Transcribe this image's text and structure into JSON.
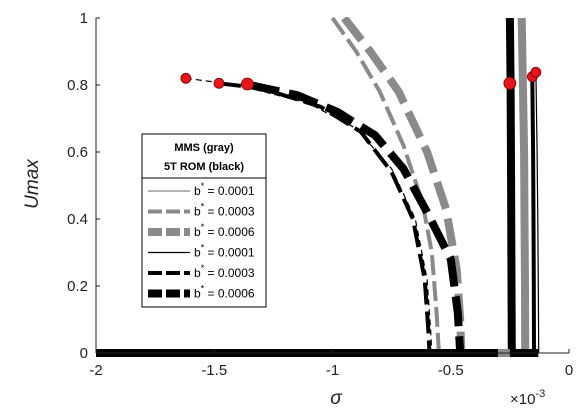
{
  "chart_data": {
    "type": "line",
    "xlabel": "σ",
    "ylabel": "Umax",
    "x_exponent_label": "×10",
    "x_exponent_power": "-3",
    "xlim": [
      -2,
      0
    ],
    "ylim": [
      0,
      1
    ],
    "xticks": [
      -2,
      -1.5,
      -1,
      -0.5,
      0
    ],
    "xtick_labels": [
      "-2",
      "-1.5",
      "-1",
      "-0.5",
      "0"
    ],
    "yticks": [
      0,
      0.2,
      0.4,
      0.6,
      0.8,
      1
    ],
    "ytick_labels": [
      "0",
      "0.2",
      "0.4",
      "0.6",
      "0.8",
      "1"
    ],
    "grid": false,
    "legend_placement": "center-left",
    "legend": {
      "title_line1": "MMS (gray)",
      "title_line2": "5T ROM (black)",
      "entries": [
        {
          "prefix": "b",
          "sup": "*",
          "text": " = 0.0001",
          "color": "#9a9a9a",
          "style": "solid",
          "width": 1.5
        },
        {
          "prefix": "b",
          "sup": "*",
          "text": " = 0.0003",
          "color": "#8a8a8a",
          "style": "dashed",
          "width": 4
        },
        {
          "prefix": "b",
          "sup": "*",
          "text": " = 0.0006",
          "color": "#8a8a8a",
          "style": "dashed",
          "width": 8
        },
        {
          "prefix": "b",
          "sup": "*",
          "text": " = 0.0001",
          "color": "#000000",
          "style": "solid",
          "width": 1.2
        },
        {
          "prefix": "b",
          "sup": "*",
          "text": " = 0.0003",
          "color": "#000000",
          "style": "dashed",
          "width": 4
        },
        {
          "prefix": "b",
          "sup": "*",
          "text": " = 0.0006",
          "color": "#000000",
          "style": "dashed",
          "width": 8
        }
      ]
    },
    "series": [
      {
        "group": "MMS",
        "b": 0.0001,
        "color": "#9a9a9a",
        "width": 1.5,
        "dash": "",
        "x": [
          -0.25,
          -0.245,
          -0.242,
          -0.24,
          -0.238,
          -0.236,
          -0.235
        ],
        "y": [
          1.0,
          0.8,
          0.6,
          0.4,
          0.2,
          0.05,
          0
        ]
      },
      {
        "group": "MMS",
        "b": 0.0003,
        "color": "#8a8a8a",
        "width": 4,
        "dash": "20 6",
        "x": [
          -1.0,
          -0.9,
          -0.8,
          -0.7,
          -0.62,
          -0.58,
          -0.56,
          -0.55
        ],
        "y": [
          1.0,
          0.9,
          0.78,
          0.62,
          0.45,
          0.3,
          0.12,
          0
        ]
      },
      {
        "group": "MMS",
        "b": 0.0006,
        "color": "#8a8a8a",
        "width": 8,
        "dash": "28 10",
        "x": [
          -0.95,
          -0.84,
          -0.72,
          -0.6,
          -0.52,
          -0.475,
          -0.46,
          -0.455
        ],
        "y": [
          1.0,
          0.9,
          0.78,
          0.6,
          0.43,
          0.25,
          0.1,
          0
        ]
      },
      {
        "group": "MMS",
        "b": 0.0006,
        "color": "#8a8a8a",
        "width": 8,
        "dash": "",
        "x": [
          -0.2,
          -0.195,
          -0.19,
          -0.188,
          -0.186,
          -0.185
        ],
        "y": [
          1.0,
          0.8,
          0.6,
          0.4,
          0.2,
          0
        ]
      },
      {
        "group": "ROM",
        "b": 0.0001,
        "color": "#000000",
        "width": 1.2,
        "dash": "6 4",
        "x": [
          -1.62,
          -1.4,
          -1.1,
          -0.9,
          -0.75,
          -0.65,
          -0.6,
          -0.585,
          -0.58
        ],
        "y": [
          0.82,
          0.8,
          0.745,
          0.67,
          0.55,
          0.4,
          0.22,
          0.07,
          0
        ]
      },
      {
        "group": "ROM",
        "b": 0.0003,
        "color": "#000000",
        "width": 4,
        "dash": "22 7",
        "x": [
          -1.48,
          -1.3,
          -1.05,
          -0.88,
          -0.75,
          -0.66,
          -0.61,
          -0.595,
          -0.59
        ],
        "y": [
          0.805,
          0.79,
          0.735,
          0.66,
          0.54,
          0.4,
          0.22,
          0.07,
          0
        ]
      },
      {
        "group": "ROM",
        "b": 0.0006,
        "color": "#000000",
        "width": 8,
        "dash": "30 10",
        "x": [
          -1.35,
          -1.15,
          -0.98,
          -0.82,
          -0.7,
          -0.6,
          -0.5,
          -0.47,
          -0.46
        ],
        "y": [
          0.8,
          0.77,
          0.72,
          0.65,
          0.55,
          0.42,
          0.28,
          0.12,
          0
        ]
      },
      {
        "group": "ROM",
        "b": 0.0001,
        "color": "#000000",
        "width": 1.2,
        "dash": "",
        "x": [
          -0.14,
          -0.135,
          -0.132,
          -0.13,
          -0.128
        ],
        "y": [
          0.84,
          0.6,
          0.4,
          0.2,
          0
        ]
      },
      {
        "group": "ROM",
        "b": 0.0003,
        "color": "#000000",
        "width": 4,
        "dash": "",
        "x": [
          -0.155,
          -0.152,
          -0.15,
          -0.149,
          -0.148
        ],
        "y": [
          0.82,
          0.6,
          0.4,
          0.2,
          0
        ]
      },
      {
        "group": "ROM",
        "b": 0.0006,
        "color": "#000000",
        "width": 8,
        "dash": "",
        "x": [
          -0.25,
          -0.247,
          -0.245,
          -0.243,
          -0.242
        ],
        "y": [
          1.0,
          0.8,
          0.5,
          0.2,
          0
        ]
      },
      {
        "group": "ROM",
        "b": 0.0006,
        "color": "#000000",
        "width": 8,
        "dash": "",
        "x": [
          -2.0,
          -0.3
        ],
        "y": [
          0,
          0
        ]
      },
      {
        "group": "MMS",
        "b": 0.0006,
        "color": "#8a8a8a",
        "width": 8,
        "dash": "",
        "x": [
          -0.3,
          -0.25
        ],
        "y": [
          0,
          0
        ]
      },
      {
        "group": "ROM",
        "b": 0.0006,
        "color": "#000000",
        "width": 8,
        "dash": "",
        "x": [
          -0.25,
          -0.13
        ],
        "y": [
          0,
          0
        ]
      }
    ],
    "markers": [
      {
        "x": -1.62,
        "y": 0.82,
        "r": 5
      },
      {
        "x": -1.48,
        "y": 0.805,
        "r": 5
      },
      {
        "x": -1.36,
        "y": 0.803,
        "r": 6
      },
      {
        "x": -0.25,
        "y": 0.805,
        "r": 6
      },
      {
        "x": -0.155,
        "y": 0.825,
        "r": 5
      },
      {
        "x": -0.14,
        "y": 0.838,
        "r": 5
      }
    ],
    "marker_color": "#e8141b"
  }
}
